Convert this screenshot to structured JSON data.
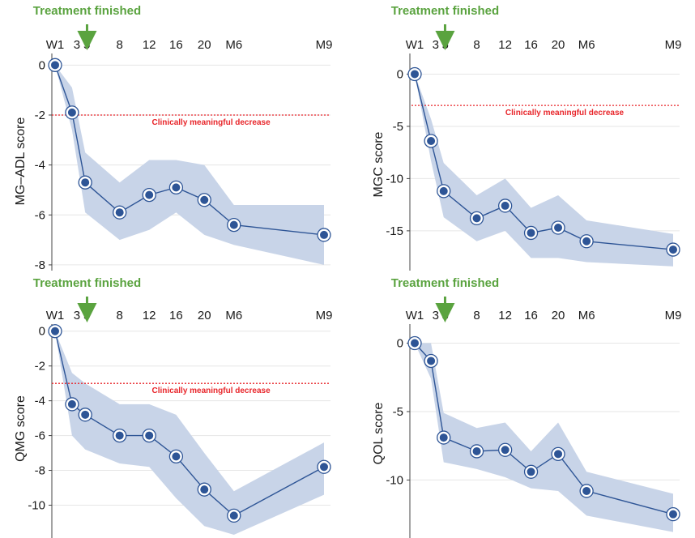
{
  "annotation_color": "#5aa33f",
  "line_color": "#2e5596",
  "band_color": "#c8d4e8",
  "threshold_color": "#e8252a",
  "chart_data": [
    {
      "type": "line",
      "panel": "top-left",
      "annotation": "Treatment finished",
      "xticks": [
        "W1",
        "3",
        "5",
        "8",
        "12",
        "16",
        "20",
        "M6",
        "M9"
      ],
      "ylabel": "MG–ADL score",
      "yticks": [
        0,
        -2,
        -4,
        -6,
        -8
      ],
      "ylim": [
        -8.1,
        0.4
      ],
      "threshold": {
        "value": -2,
        "label": "Clinically meaningful decrease"
      },
      "series": [
        {
          "x": [
            "W1",
            "3",
            "5",
            "8",
            "12",
            "16",
            "20",
            "M6",
            "M9"
          ],
          "values": [
            0,
            -1.9,
            -4.7,
            -5.9,
            -5.2,
            -4.9,
            -5.4,
            -6.4,
            -6.8
          ],
          "lower": [
            0,
            -2.6,
            -5.9,
            -7.0,
            -6.6,
            -5.9,
            -6.8,
            -7.2,
            -8.0
          ],
          "upper": [
            0,
            -0.9,
            -3.5,
            -4.7,
            -3.8,
            -3.8,
            -4.0,
            -5.6,
            -5.6
          ]
        }
      ]
    },
    {
      "type": "line",
      "panel": "top-right",
      "annotation": "Treatment finished",
      "xticks": [
        "W1",
        "3",
        "5",
        "8",
        "12",
        "16",
        "20",
        "M6",
        "M9"
      ],
      "ylabel": "MGC score",
      "yticks": [
        0,
        -5,
        -10,
        -15
      ],
      "ylim": [
        -18.5,
        1.2
      ],
      "threshold": {
        "value": -3,
        "label": "Clinically meaningful decrease"
      },
      "series": [
        {
          "x": [
            "W1",
            "3",
            "5",
            "8",
            "12",
            "16",
            "20",
            "M6",
            "M9"
          ],
          "values": [
            0,
            -6.4,
            -11.2,
            -13.8,
            -12.6,
            -15.2,
            -14.7,
            -16.0,
            -16.8
          ],
          "lower": [
            0,
            -8.3,
            -13.7,
            -16.0,
            -15.0,
            -17.6,
            -17.6,
            -18.0,
            -18.4
          ],
          "upper": [
            0,
            -4.3,
            -8.5,
            -11.6,
            -10.0,
            -12.8,
            -11.6,
            -14.0,
            -15.3
          ]
        }
      ]
    },
    {
      "type": "line",
      "panel": "bottom-left",
      "annotation": "Treatment finished",
      "xticks": [
        "W1",
        "3",
        "5",
        "8",
        "12",
        "16",
        "20",
        "M6",
        "M9"
      ],
      "ylabel": "QMG score",
      "yticks": [
        0,
        -2,
        -4,
        -6,
        -8,
        -10
      ],
      "ylim": [
        -11.7,
        0.5
      ],
      "threshold": {
        "value": -3,
        "label": "Clinically meaningful decrease"
      },
      "series": [
        {
          "x": [
            "W1",
            "3",
            "5",
            "8",
            "12",
            "16",
            "20",
            "M6",
            "M9"
          ],
          "values": [
            0,
            -4.2,
            -4.8,
            -6.0,
            -6.0,
            -7.2,
            -9.1,
            -10.6,
            -7.8
          ],
          "lower": [
            0,
            -6.0,
            -6.8,
            -7.6,
            -7.8,
            -9.6,
            -11.2,
            -11.7,
            -9.4
          ],
          "upper": [
            0,
            -2.4,
            -3.0,
            -4.2,
            -4.2,
            -4.8,
            -7.0,
            -9.2,
            -6.4
          ]
        }
      ]
    },
    {
      "type": "line",
      "panel": "bottom-right",
      "annotation": "Treatment finished",
      "xticks": [
        "W1",
        "3",
        "5",
        "8",
        "12",
        "16",
        "20",
        "M6",
        "M9"
      ],
      "ylabel": "QOL score",
      "yticks": [
        0,
        -5,
        -10
      ],
      "ylim": [
        -14.0,
        0.8
      ],
      "threshold": null,
      "series": [
        {
          "x": [
            "W1",
            "3",
            "5",
            "8",
            "12",
            "16",
            "20",
            "M6",
            "M9"
          ],
          "values": [
            0,
            -1.3,
            -6.9,
            -7.9,
            -7.8,
            -9.4,
            -8.1,
            -10.8,
            -12.5
          ],
          "lower": [
            0,
            -2.6,
            -8.7,
            -9.2,
            -9.8,
            -10.6,
            -10.8,
            -12.6,
            -13.8
          ],
          "upper": [
            0,
            0,
            -5.1,
            -6.2,
            -5.8,
            -7.9,
            -5.8,
            -9.4,
            -11.0
          ]
        }
      ]
    }
  ]
}
